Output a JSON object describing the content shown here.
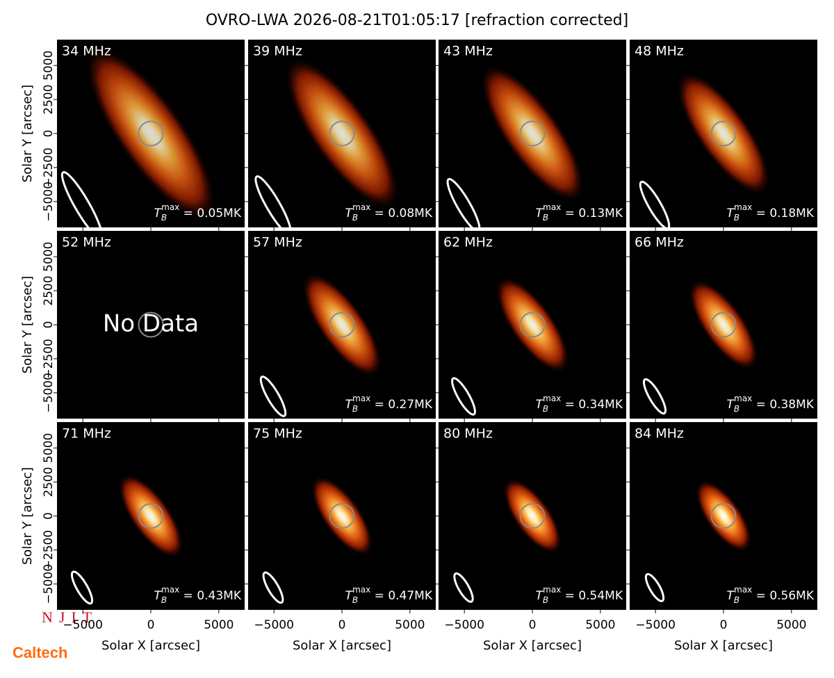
{
  "title": "OVRO-LWA 2026-08-21T01:05:17 [refraction corrected]",
  "logos": [
    "NJIT",
    "Caltech"
  ],
  "chart_data": {
    "type": "image_grid",
    "xlabel": "Solar X [arcsec]",
    "ylabel": "Solar Y [arcsec]",
    "xlim": [
      -6900,
      6900
    ],
    "ylim": [
      -6900,
      6900
    ],
    "xticks": [
      {
        "value": -5000,
        "label": "−5000"
      },
      0,
      5000
    ],
    "yticks": [
      {
        "value": -5000,
        "label": "−5000"
      },
      {
        "value": -2500,
        "label": "−2500"
      },
      0,
      2500,
      5000
    ],
    "tmax_symbol": {
      "base": "T",
      "sub": "B",
      "sup": "max"
    },
    "panels": [
      {
        "freq": 34,
        "label": "34 MHz",
        "tmax": 0.05,
        "tmax_label": " = 0.05MK"
      },
      {
        "freq": 39,
        "label": "39 MHz",
        "tmax": 0.08,
        "tmax_label": " = 0.08MK"
      },
      {
        "freq": 43,
        "label": "43 MHz",
        "tmax": 0.13,
        "tmax_label": " = 0.13MK"
      },
      {
        "freq": 48,
        "label": "48 MHz",
        "tmax": 0.18,
        "tmax_label": " = 0.18MK"
      },
      {
        "freq": 52,
        "label": "52 MHz",
        "no_data": "No Data"
      },
      {
        "freq": 57,
        "label": "57 MHz",
        "tmax": 0.27,
        "tmax_label": " = 0.27MK"
      },
      {
        "freq": 62,
        "label": "62 MHz",
        "tmax": 0.34,
        "tmax_label": " = 0.34MK"
      },
      {
        "freq": 66,
        "label": "66 MHz",
        "tmax": 0.38,
        "tmax_label": " = 0.38MK"
      },
      {
        "freq": 71,
        "label": "71 MHz",
        "tmax": 0.43,
        "tmax_label": " = 0.43MK"
      },
      {
        "freq": 75,
        "label": "75 MHz",
        "tmax": 0.47,
        "tmax_label": " = 0.47MK"
      },
      {
        "freq": 80,
        "label": "80 MHz",
        "tmax": 0.54,
        "tmax_label": " = 0.54MK"
      },
      {
        "freq": 84,
        "label": "84 MHz",
        "tmax": 0.56,
        "tmax_label": " = 0.56MK"
      }
    ]
  }
}
